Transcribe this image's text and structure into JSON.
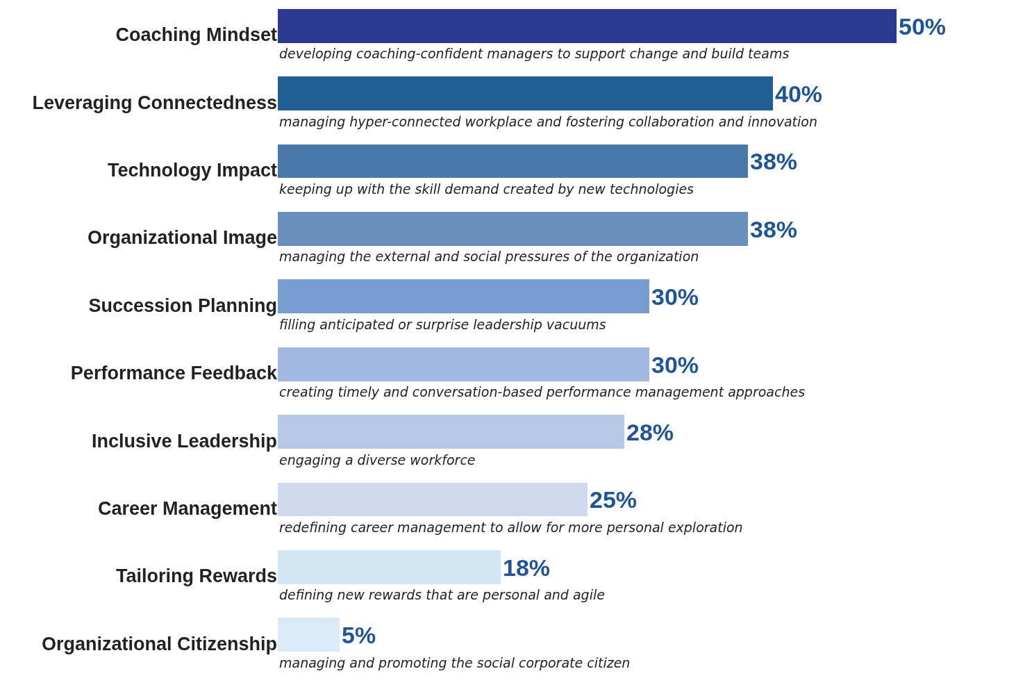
{
  "chart_data": {
    "type": "bar",
    "orientation": "horizontal",
    "categories": [
      "Coaching Mindset",
      "Leveraging Connectedness",
      "Technology Impact",
      "Organizational Image",
      "Succession Planning",
      "Performance Feedback",
      "Inclusive Leadership",
      "Career Management",
      "Tailoring Rewards",
      "Organizational Citizenship"
    ],
    "values": [
      50,
      40,
      38,
      38,
      30,
      30,
      28,
      25,
      18,
      5
    ],
    "value_labels": [
      "50%",
      "40%",
      "38%",
      "38%",
      "30%",
      "30%",
      "28%",
      "25%",
      "18%",
      "5%"
    ],
    "colors": [
      "#2b3990",
      "#1f5f96",
      "#4a78aa",
      "#6a8fbd",
      "#789dd0",
      "#a3b8e0",
      "#b8c9e8",
      "#cfd9ee",
      "#d2e6f4",
      "#dbeaf7"
    ],
    "annotations": [
      "developing coaching-confident managers to support change and build teams",
      "managing hyper-connected workplace and fostering collaboration and innovation",
      "keeping up with the skill demand created by new technologies",
      "managing the external and social pressures of the organization",
      "filling anticipated or surprise leadership vacuums",
      "creating timely and conversation-based performance management approaches",
      "engaging a diverse workforce",
      "redefining career management to allow for more personal exploration",
      "defining new rewards that are personal and agile",
      "managing and promoting the social corporate citizen"
    ],
    "grid": false
  }
}
